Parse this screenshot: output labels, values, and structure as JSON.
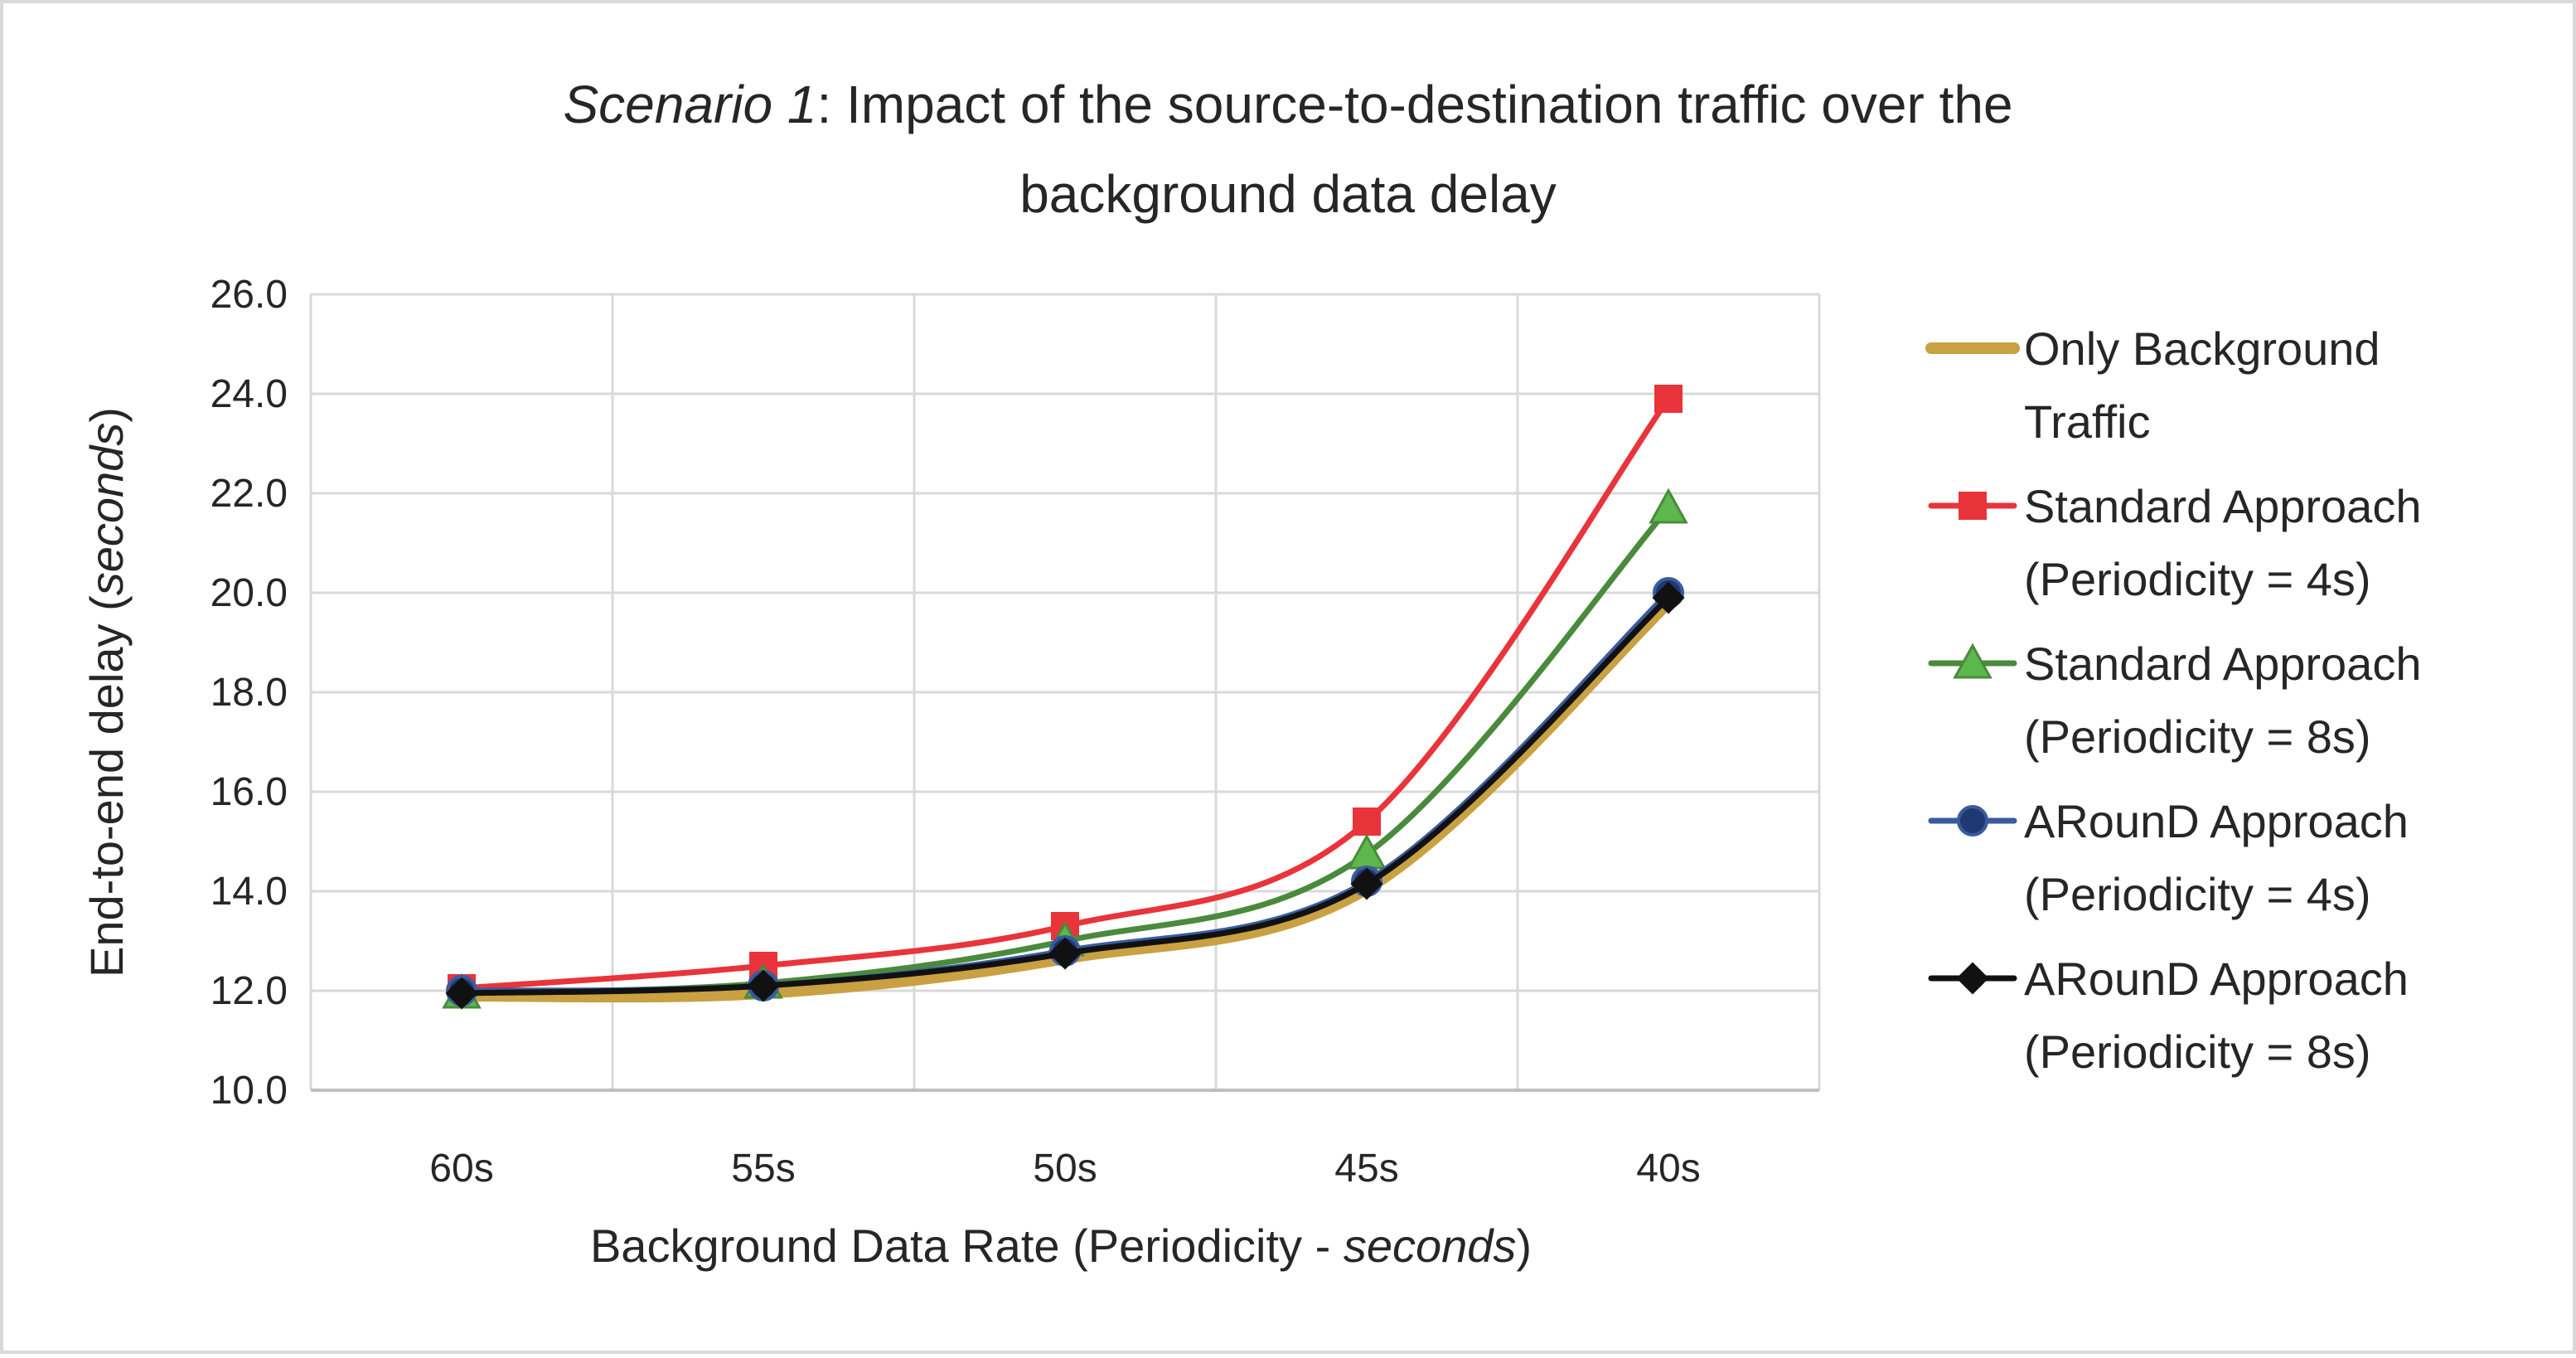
{
  "chart_data": {
    "type": "line",
    "title_italic": "Scenario 1",
    "title_rest": ": Impact of the source-to-destination traffic over the",
    "title_line2": "background data delay",
    "xlabel_prefix": "Background  Data Rate (Periodicity  - ",
    "xlabel_italic": "seconds",
    "xlabel_suffix": ")",
    "ylabel_prefix": "End-to-end delay (",
    "ylabel_italic": "seconds",
    "ylabel_suffix": ")",
    "categories": [
      "60s",
      "55s",
      "50s",
      "45s",
      "40s"
    ],
    "ylim": [
      10.0,
      26.0
    ],
    "ytick_step": 2.0,
    "ytick_labels": [
      "10.0",
      "12.0",
      "14.0",
      "16.0",
      "18.0",
      "20.0",
      "22.0",
      "24.0",
      "26.0"
    ],
    "grid": true,
    "legend_position": "right",
    "series": [
      {
        "name_lines": [
          "Only Background",
          "Traffic"
        ],
        "values": [
          11.9,
          11.95,
          12.65,
          14.05,
          19.8
        ],
        "color": "#C9A042",
        "marker": "none"
      },
      {
        "name_lines": [
          "Standard Approach",
          "(Periodicity = 4s)"
        ],
        "values": [
          12.05,
          12.5,
          13.3,
          15.4,
          23.9
        ],
        "color": "#E8343A",
        "marker": "square"
      },
      {
        "name_lines": [
          "Standard Approach",
          "(Periodicity = 8s)"
        ],
        "values": [
          11.95,
          12.15,
          13.0,
          14.75,
          21.7
        ],
        "color": "#4A8A3C",
        "marker_fill": "#5CB84C",
        "marker": "triangle"
      },
      {
        "name_lines": [
          "ARounD Approach",
          "(Periodicity = 4s)"
        ],
        "values": [
          12.0,
          12.1,
          12.8,
          14.2,
          20.0
        ],
        "color": "#3A5C9E",
        "marker_fill": "#1F3A73",
        "marker": "circle"
      },
      {
        "name_lines": [
          "ARounD Approach",
          "(Periodicity = 8s)"
        ],
        "values": [
          11.95,
          12.1,
          12.75,
          14.15,
          19.9
        ],
        "color": "#111111",
        "marker": "diamond"
      }
    ]
  }
}
